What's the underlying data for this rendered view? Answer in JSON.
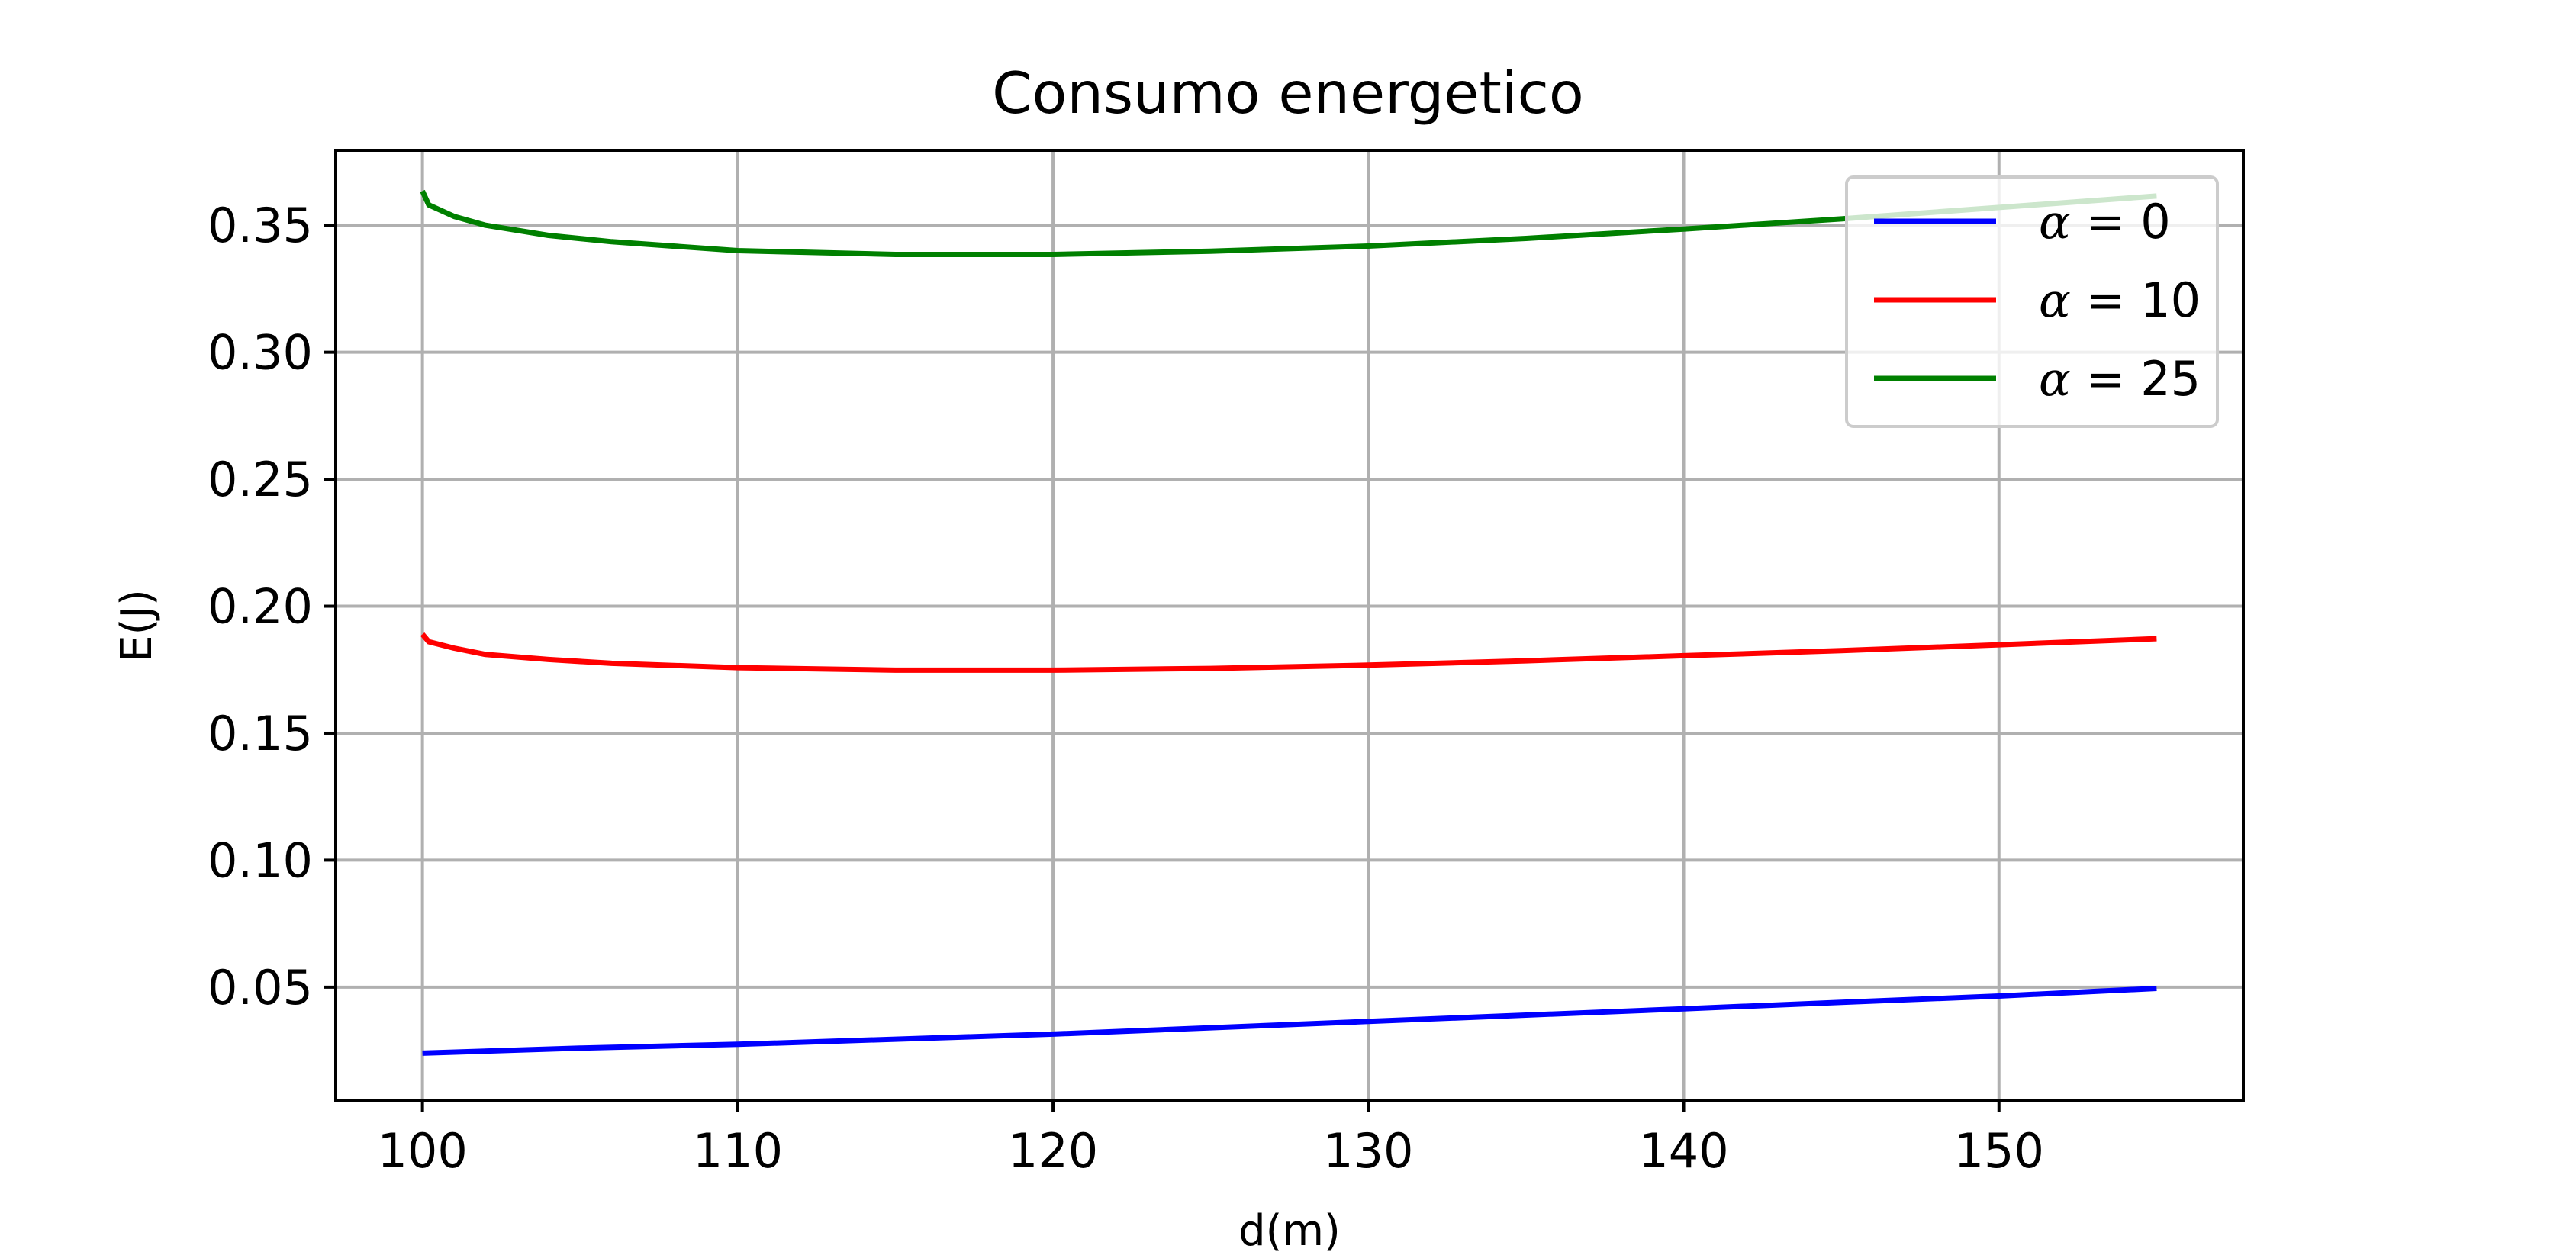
{
  "chart_data": {
    "type": "line",
    "title": "Consumo energetico",
    "xlabel": "d(m)",
    "ylabel": "E(J)",
    "xlim": [
      97.25,
      157.75
    ],
    "ylim": [
      0.0055,
      0.3795
    ],
    "xticks": [
      100,
      110,
      120,
      130,
      140,
      150
    ],
    "xtick_labels": [
      "100",
      "110",
      "120",
      "130",
      "140",
      "150"
    ],
    "yticks": [
      0.05,
      0.1,
      0.15,
      0.2,
      0.25,
      0.3,
      0.35
    ],
    "ytick_labels": [
      "0.05",
      "0.10",
      "0.15",
      "0.20",
      "0.25",
      "0.30",
      "0.35"
    ],
    "grid": true,
    "legend_position": "top-right",
    "series": [
      {
        "name": "= 0",
        "alpha_value": "0",
        "color": "#0000ff",
        "x": [
          100,
          105,
          110,
          115,
          120,
          125,
          130,
          135,
          140,
          145,
          150,
          155
        ],
        "y": [
          0.024,
          0.026,
          0.0275,
          0.0295,
          0.0315,
          0.034,
          0.0365,
          0.039,
          0.0415,
          0.044,
          0.0465,
          0.0495
        ]
      },
      {
        "name": "= 10",
        "alpha_value": "10",
        "color": "#ff0000",
        "x": [
          100,
          100.2,
          101,
          102,
          104,
          106,
          110,
          115,
          120,
          125,
          130,
          135,
          140,
          145,
          150,
          155
        ],
        "y": [
          0.189,
          0.186,
          0.1835,
          0.181,
          0.179,
          0.1775,
          0.1758,
          0.1748,
          0.1748,
          0.1755,
          0.1768,
          0.1785,
          0.1805,
          0.1825,
          0.1848,
          0.1872
        ]
      },
      {
        "name": "= 25",
        "alpha_value": "25",
        "color": "#008000",
        "x": [
          100,
          100.2,
          101,
          102,
          104,
          106,
          110,
          115,
          120,
          125,
          130,
          135,
          140,
          145,
          150,
          155
        ],
        "y": [
          0.3635,
          0.358,
          0.3535,
          0.35,
          0.346,
          0.3435,
          0.34,
          0.3385,
          0.3385,
          0.3398,
          0.3418,
          0.3448,
          0.3485,
          0.3525,
          0.357,
          0.3615
        ]
      }
    ],
    "legend_label_prefix": "α"
  }
}
